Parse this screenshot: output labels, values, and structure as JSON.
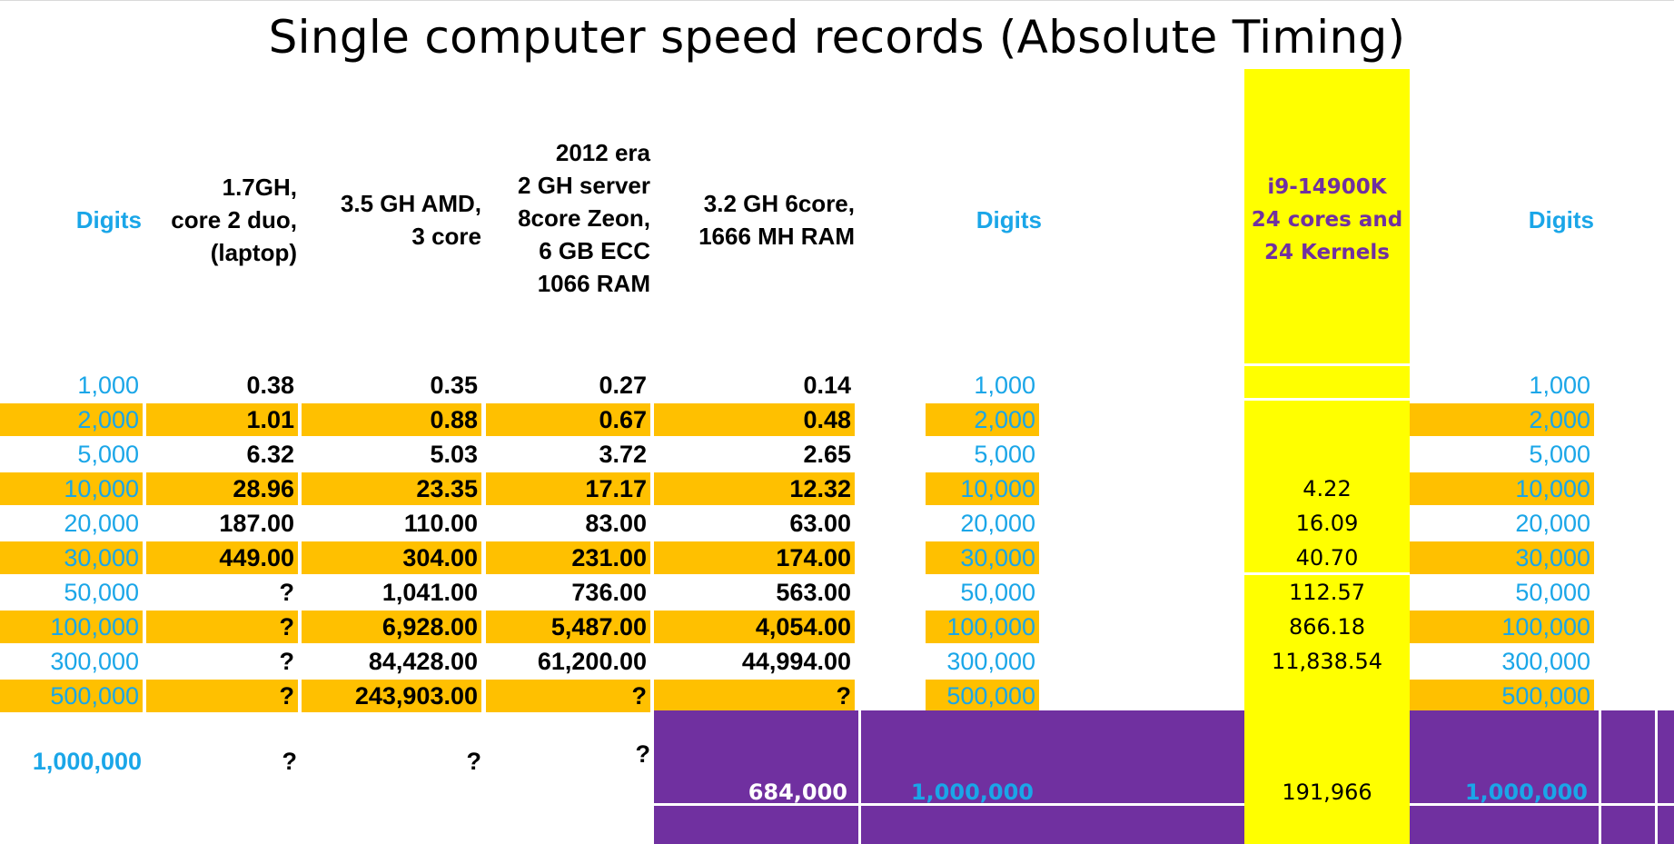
{
  "title": "Single computer speed records (Absolute Timing)",
  "headers": {
    "digits": "Digits",
    "laptop": [
      "1.7GH,",
      "core 2 duo,",
      "(laptop)"
    ],
    "amd": [
      "3.5 GH AMD,",
      "3 core"
    ],
    "xeon": [
      "2012 era",
      "2 GH server",
      "8core Zeon,",
      "6 GB ECC",
      "1066  RAM"
    ],
    "sixcore": [
      "3.2 GH  6core,",
      "1666 MH RAM"
    ],
    "digits2": "Digits",
    "i9": [
      "i9-14900K",
      "24 cores and",
      "24 Kernels"
    ],
    "digits3": "Digits"
  },
  "rows": [
    {
      "digits": "1,000",
      "c1": "0.38",
      "c2": "0.35",
      "c3": "0.27",
      "c4": "0.14",
      "i9": ""
    },
    {
      "digits": "2,000",
      "c1": "1.01",
      "c2": "0.88",
      "c3": "0.67",
      "c4": "0.48",
      "i9": ""
    },
    {
      "digits": "5,000",
      "c1": "6.32",
      "c2": "5.03",
      "c3": "3.72",
      "c4": "2.65",
      "i9": ""
    },
    {
      "digits": "10,000",
      "c1": "28.96",
      "c2": "23.35",
      "c3": "17.17",
      "c4": "12.32",
      "i9": "4.22"
    },
    {
      "digits": "20,000",
      "c1": "187.00",
      "c2": "110.00",
      "c3": "83.00",
      "c4": "63.00",
      "i9": "16.09"
    },
    {
      "digits": "30,000",
      "c1": "449.00",
      "c2": "304.00",
      "c3": "231.00",
      "c4": "174.00",
      "i9": "40.70"
    },
    {
      "digits": "50,000",
      "c1": "?",
      "c2": "1,041.00",
      "c3": "736.00",
      "c4": "563.00",
      "i9": "112.57"
    },
    {
      "digits": "100,000",
      "c1": "?",
      "c2": "6,928.00",
      "c3": "5,487.00",
      "c4": "4,054.00",
      "i9": "866.18"
    },
    {
      "digits": "300,000",
      "c1": "?",
      "c2": "84,428.00",
      "c3": "61,200.00",
      "c4": "44,994.00",
      "i9": "11,838.54"
    },
    {
      "digits": "500,000",
      "c1": "?",
      "c2": "243,903.00",
      "c3": "?",
      "c4": "?",
      "i9": ""
    }
  ],
  "last_row": {
    "digits": "1,000,000",
    "c1": "?",
    "c2": "?",
    "c3": "?",
    "c4": "684,000",
    "digits2": "1,000,000",
    "i9": "191,966",
    "digits3": "1,000,000"
  },
  "colors": {
    "orange": "#ffc000",
    "blue": "#1aa6e8",
    "yellow": "#ffff00",
    "purple": "#7030a0"
  }
}
